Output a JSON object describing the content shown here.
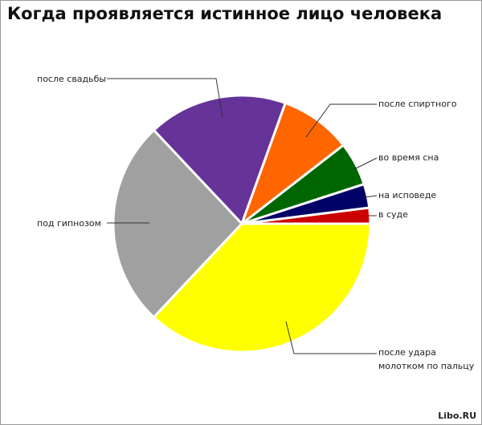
{
  "chart_data": {
    "type": "pie",
    "title": "Когда проявляется истинное лицо человека",
    "categories": [
      "в суде",
      "на исповеде",
      "во время сна",
      "после спиртного",
      "после свадьбы",
      "под гипнозом",
      "после удара молотком по пальцу"
    ],
    "values": [
      2,
      3,
      5.5,
      9,
      17.5,
      26,
      37
    ],
    "colors": [
      "#cc0000",
      "#000066",
      "#006600",
      "#ff6600",
      "#663399",
      "#a0a0a0",
      "#ffff00"
    ]
  },
  "watermark": "Libo.RU"
}
